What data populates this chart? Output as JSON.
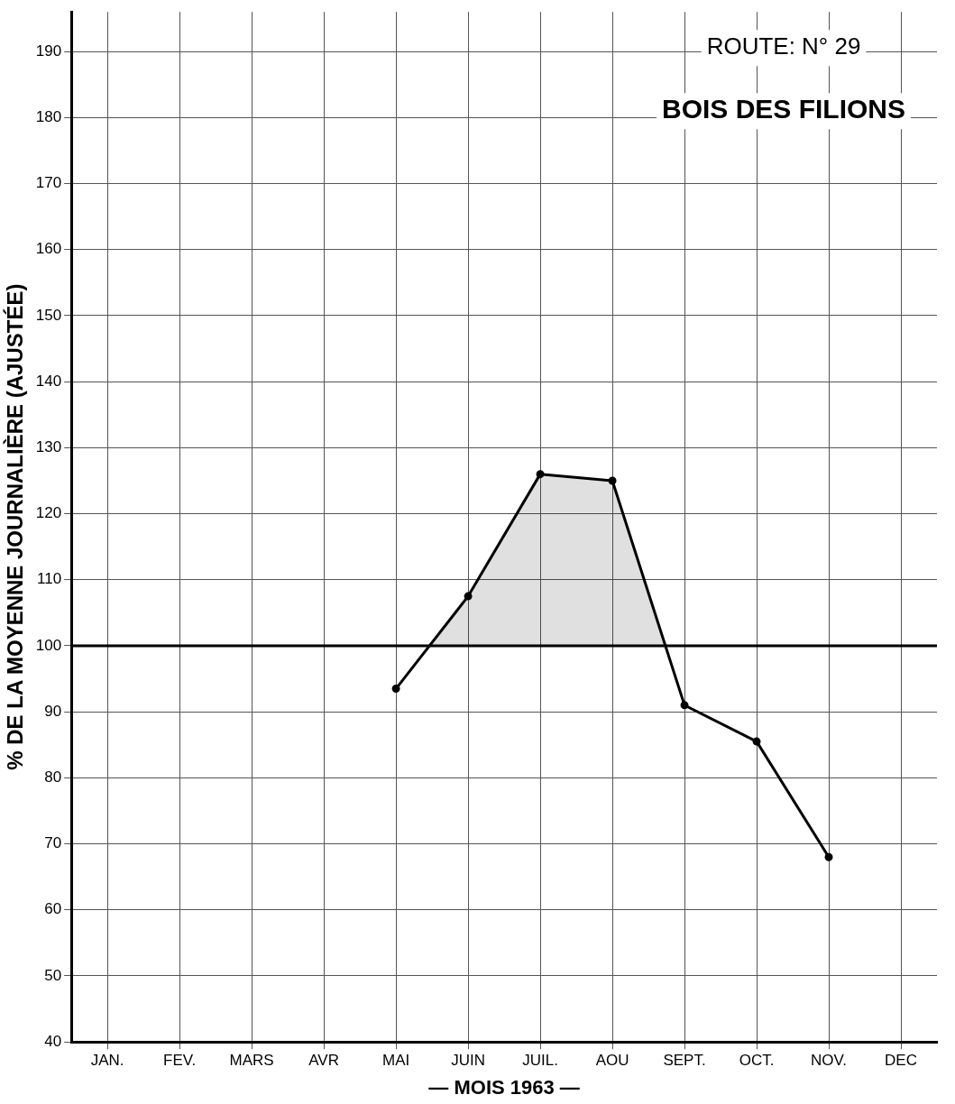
{
  "chart_data": {
    "type": "line",
    "xlabel": "— MOIS 1963 —",
    "ylabel": "% DE LA MOYENNE JOURNALIÈRE (AJUSTÉE)",
    "annotations": [
      "ROUTE: N° 29",
      "BOIS DES FILIONS"
    ],
    "categories": [
      "JAN.",
      "FEV.",
      "MARS",
      "AVR",
      "MAI",
      "JUIN",
      "JUIL.",
      "AOU",
      "SEPT.",
      "OCT.",
      "NOV.",
      "DEC"
    ],
    "values": [
      null,
      null,
      null,
      null,
      93.5,
      107.5,
      126,
      125,
      91,
      85.5,
      68,
      null
    ],
    "color": "#000000",
    "marker": "circle",
    "grid": true,
    "ylim": [
      40,
      196
    ],
    "yticks": [
      40,
      50,
      60,
      70,
      80,
      90,
      100,
      110,
      120,
      130,
      140,
      150,
      160,
      170,
      180,
      190
    ],
    "ref_lines": [
      {
        "axis": "y",
        "value": 100,
        "color": "#000000"
      }
    ]
  }
}
